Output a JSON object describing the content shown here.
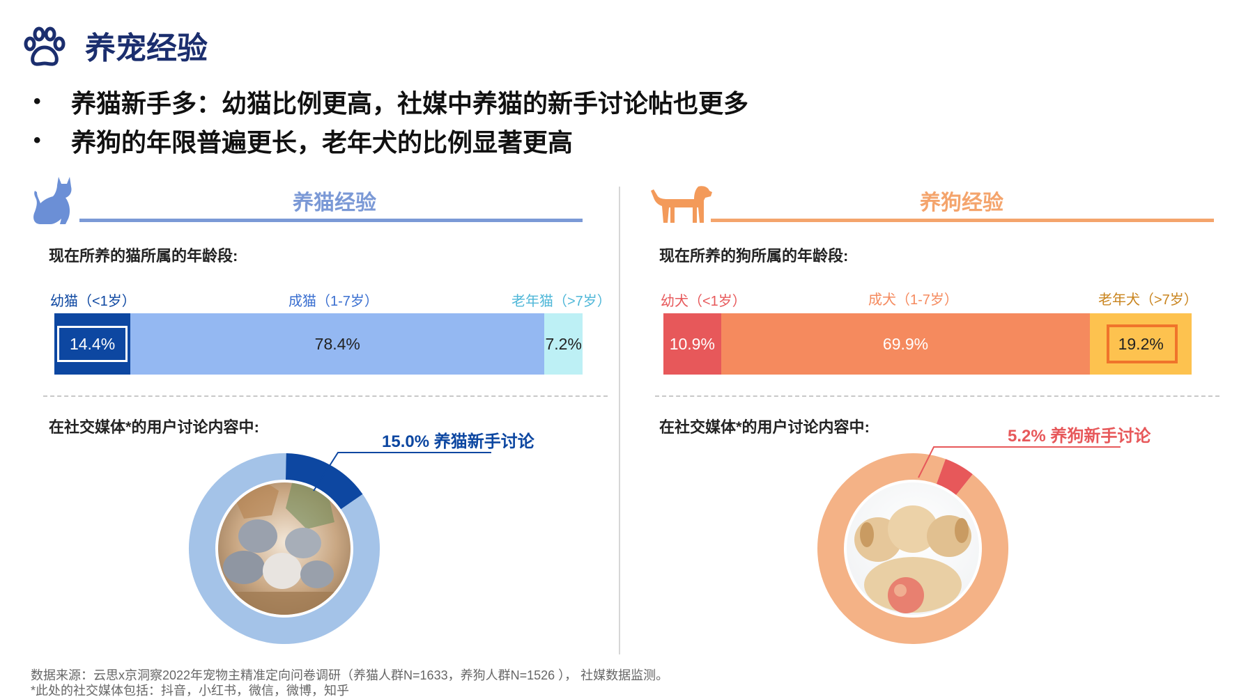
{
  "page": {
    "title": "养宠经验",
    "bullets": [
      "养猫新手多：幼猫比例更高，社媒中养猫的新手讨论帖也更多",
      "养狗的年限普遍更长，老年犬的比例显著更高"
    ]
  },
  "icons": {
    "title": "paw-icon",
    "cat": "cat-silhouette-icon",
    "dog": "dog-silhouette-icon"
  },
  "cat": {
    "section_title": "养猫经验",
    "age_question": "现在所养的猫所属的年龄段:",
    "social_question": "在社交媒体*的用户讨论内容中:",
    "photo": "kittens-photo",
    "colors": {
      "accent": "#7b99d6",
      "young": "#0d47a1",
      "adult": "#94b8f2",
      "senior": "#bdf0f5",
      "donut_rest": "#a4c3e8",
      "donut_highlight": "#0d47a1"
    }
  },
  "dog": {
    "section_title": "养狗经验",
    "age_question": "现在所养的狗所属的年龄段:",
    "social_question": "在社交媒体*的用户讨论内容中:",
    "photo": "puppies-photo",
    "colors": {
      "accent": "#f4a46c",
      "young": "#e7585a",
      "adult": "#f58a5e",
      "senior": "#fdc24f",
      "donut_rest": "#f4b286",
      "donut_highlight": "#e7585a"
    }
  },
  "chart_data": [
    {
      "type": "bar",
      "stacked": true,
      "orientation": "horizontal",
      "categories": [
        "幼猫（<1岁）",
        "成猫（1-7岁）",
        "老年猫（>7岁）"
      ],
      "values": [
        14.4,
        78.4,
        7.2
      ],
      "value_labels": [
        "14.4%",
        "78.4%",
        "7.2%"
      ],
      "highlight": "幼猫（<1岁）"
    },
    {
      "type": "bar",
      "stacked": true,
      "orientation": "horizontal",
      "categories": [
        "幼犬（<1岁）",
        "成犬（1-7岁）",
        "老年犬（>7岁）"
      ],
      "values": [
        10.9,
        69.9,
        19.2
      ],
      "value_labels": [
        "10.9%",
        "69.9%",
        "19.2%"
      ],
      "highlight": "老年犬（>7岁）"
    },
    {
      "type": "pie",
      "donut": true,
      "values": [
        15.0,
        85.0
      ],
      "callout": "15.0% 养猫新手讨论"
    },
    {
      "type": "pie",
      "donut": true,
      "values": [
        5.2,
        94.8
      ],
      "callout": "5.2% 养狗新手讨论"
    }
  ],
  "footer": {
    "source": "数据来源：云思x京洞察2022年宠物主精准定向问卷调研（养猫人群N=1633，养狗人群N=1526 ）， 社媒数据监测。",
    "note": "*此处的社交媒体包括：抖音，小红书，微信，微博，知乎"
  }
}
